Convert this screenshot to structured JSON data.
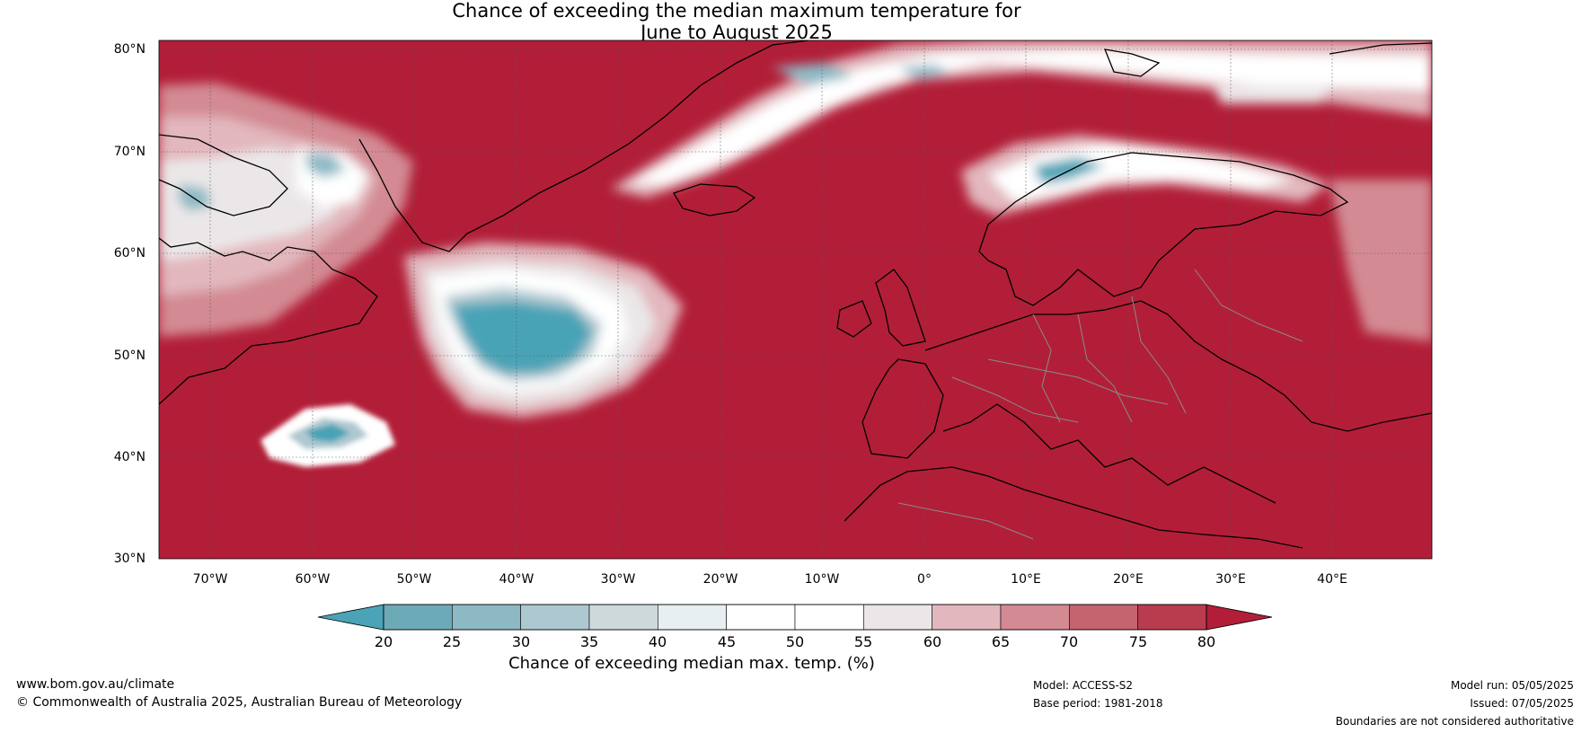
{
  "title_line1": "Chance of exceeding the median maximum temperature for",
  "title_line2": "June to August 2025",
  "lat_ticks": [
    "80°N",
    "70°N",
    "60°N",
    "50°N",
    "40°N",
    "30°N"
  ],
  "lon_ticks": [
    "70°W",
    "60°W",
    "50°W",
    "40°W",
    "30°W",
    "20°W",
    "10°W",
    "0°",
    "10°E",
    "20°E",
    "30°E",
    "40°E"
  ],
  "colorbar": {
    "ticks": [
      "20",
      "25",
      "30",
      "35",
      "40",
      "45",
      "50",
      "55",
      "60",
      "65",
      "70",
      "75",
      "80"
    ],
    "colors": [
      "#4aa3b6",
      "#6daab8",
      "#8db9c5",
      "#adc8d0",
      "#ced9dc",
      "#e8eff1",
      "#ffffff",
      "#ffffff",
      "#ebe7e8",
      "#e2b7bd",
      "#d38a93",
      "#c5636f",
      "#b93b4e",
      "#b21e38"
    ],
    "label": "Chance of exceeding median max. temp. (%)"
  },
  "footer": {
    "url": "www.bom.gov.au/climate",
    "copyright": "© Commonwealth of Australia 2025, Australian Bureau of Meteorology",
    "model": "Model: ACCESS-S2",
    "base_period": "Base period: 1981-2018",
    "model_run": "Model run: 05/05/2025",
    "issued": "Issued: 07/05/2025",
    "disclaimer": "Boundaries are not considered authoritative"
  },
  "map": {
    "background_color": "#b21e38",
    "coastline_color": "#000000",
    "border_color": "#8a8a8a"
  }
}
